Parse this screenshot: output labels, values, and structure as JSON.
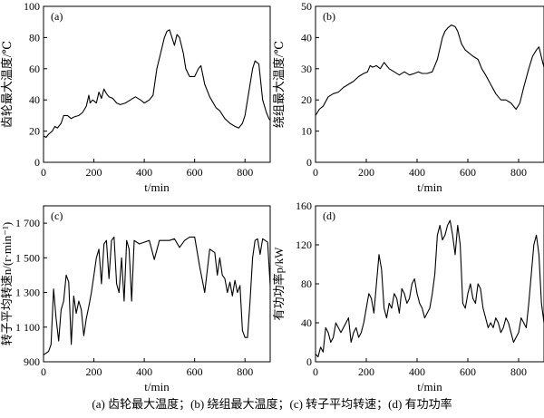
{
  "caption": "(a) 齿轮最大温度；(b) 绕组最大温度；(c) 转子平均转速；(d) 有功功率",
  "chart_data": [
    {
      "type": "line",
      "panel_label": "(a)",
      "ylabel": "齿轮最大温度/℃",
      "xlabel": "t/min",
      "xlim": [
        0,
        900
      ],
      "ylim": [
        0,
        100
      ],
      "xticks": [
        0,
        200,
        400,
        600,
        800
      ],
      "yticks": [
        0,
        20,
        40,
        60,
        80,
        100
      ],
      "ytick_labels": [
        "0",
        "20",
        "40",
        "60",
        "80",
        "100"
      ],
      "grid": false,
      "series": [
        {
          "x": [
            0,
            10,
            20,
            35,
            45,
            55,
            70,
            80,
            95,
            110,
            120,
            140,
            155,
            170,
            180,
            185,
            195,
            210,
            220,
            230,
            240,
            250,
            260,
            275,
            290,
            305,
            325,
            345,
            365,
            385,
            400,
            420,
            435,
            450,
            465,
            480,
            490,
            500,
            510,
            520,
            530,
            540,
            555,
            565,
            580,
            600,
            615,
            625,
            640,
            660,
            685,
            700,
            720,
            740,
            760,
            775,
            790,
            800,
            815,
            830,
            840,
            855,
            870,
            885,
            895,
            900
          ],
          "values": [
            17,
            16,
            18,
            20,
            23,
            22,
            25,
            30,
            30,
            28,
            29,
            30,
            32,
            36,
            43,
            38,
            40,
            38,
            45,
            41,
            47,
            44,
            42,
            41,
            38,
            37,
            38,
            40,
            42,
            40,
            38,
            40,
            43,
            60,
            70,
            80,
            84,
            85,
            80,
            75,
            82,
            80,
            70,
            60,
            55,
            55,
            60,
            62,
            50,
            42,
            35,
            33,
            28,
            25,
            23,
            22,
            25,
            30,
            45,
            60,
            65,
            63,
            40,
            32,
            28,
            27
          ]
        }
      ]
    },
    {
      "type": "line",
      "panel_label": "(b)",
      "ylabel": "绕组最大温度/℃",
      "xlabel": "t/min",
      "xlim": [
        0,
        900
      ],
      "ylim": [
        0,
        50
      ],
      "xticks": [
        0,
        200,
        400,
        600,
        800
      ],
      "yticks": [
        0,
        10,
        20,
        30,
        40,
        50
      ],
      "ytick_labels": [
        "0",
        "10",
        "20",
        "30",
        "40",
        "50"
      ],
      "grid": false,
      "series": [
        {
          "x": [
            0,
            15,
            30,
            50,
            70,
            90,
            110,
            130,
            150,
            170,
            190,
            205,
            215,
            225,
            240,
            255,
            270,
            290,
            310,
            330,
            350,
            370,
            390,
            405,
            420,
            440,
            460,
            480,
            500,
            510,
            520,
            535,
            550,
            560,
            575,
            590,
            605,
            620,
            640,
            655,
            670,
            690,
            710,
            730,
            750,
            770,
            780,
            790,
            805,
            820,
            840,
            855,
            870,
            880,
            895,
            900
          ],
          "values": [
            15,
            17,
            18,
            21,
            22,
            22.5,
            24,
            25,
            26,
            27.5,
            28.5,
            29,
            31,
            30.5,
            31,
            30,
            32,
            30,
            29,
            28,
            29,
            28,
            28.5,
            29,
            28.5,
            28.5,
            29,
            33,
            40,
            42,
            43,
            44,
            43.5,
            42,
            38,
            36,
            35,
            34,
            33,
            30,
            28,
            25,
            22,
            20,
            20,
            19,
            18,
            17,
            19,
            24,
            30,
            34,
            36,
            37,
            32,
            30.5
          ]
        }
      ]
    },
    {
      "type": "line",
      "panel_label": "(c)",
      "ylabel": "转子平均转速n/(r·min⁻¹)",
      "xlabel": "t/min",
      "xlim": [
        0,
        900
      ],
      "ylim": [
        900,
        1800
      ],
      "xticks": [
        0,
        200,
        400,
        600,
        800
      ],
      "yticks": [
        900,
        1100,
        1300,
        1500,
        1700
      ],
      "ytick_labels": [
        "900",
        "1 100",
        "1 300",
        "1 500",
        "1 700"
      ],
      "grid": false,
      "series": [
        {
          "x": [
            0,
            10,
            20,
            30,
            40,
            50,
            60,
            70,
            80,
            90,
            100,
            110,
            120,
            130,
            140,
            150,
            160,
            170,
            180,
            190,
            200,
            210,
            220,
            230,
            240,
            250,
            260,
            270,
            280,
            290,
            300,
            310,
            320,
            330,
            340,
            350,
            360,
            380,
            400,
            420,
            440,
            460,
            480,
            500,
            520,
            540,
            560,
            580,
            600,
            620,
            640,
            660,
            680,
            690,
            700,
            710,
            720,
            730,
            740,
            750,
            760,
            770,
            780,
            790,
            800,
            810,
            820,
            830,
            840,
            850,
            860,
            870,
            880,
            890,
            900
          ],
          "values": [
            940,
            950,
            960,
            1000,
            1320,
            1150,
            1020,
            1200,
            1250,
            1400,
            1360,
            1000,
            1280,
            1180,
            1250,
            1200,
            1050,
            1150,
            1220,
            1300,
            1400,
            1500,
            1550,
            1350,
            1580,
            1600,
            1380,
            1600,
            1620,
            1350,
            1300,
            1500,
            1250,
            1600,
            1550,
            1250,
            1600,
            1580,
            1590,
            1600,
            1490,
            1600,
            1600,
            1600,
            1610,
            1560,
            1600,
            1620,
            1620,
            1450,
            1300,
            1550,
            1530,
            1400,
            1500,
            1400,
            1380,
            1300,
            1360,
            1280,
            1370,
            1300,
            1340,
            1080,
            1040,
            1040,
            1250,
            1500,
            1600,
            1610,
            1520,
            1610,
            1600,
            1590,
            1340
          ]
        }
      ]
    },
    {
      "type": "line",
      "panel_label": "(d)",
      "ylabel": "有功功率p/kW",
      "xlabel": "t/min",
      "xlim": [
        0,
        900
      ],
      "ylim": [
        0,
        160
      ],
      "xticks": [
        0,
        200,
        400,
        600,
        800
      ],
      "yticks": [
        0,
        40,
        80,
        120,
        160
      ],
      "ytick_labels": [
        "0",
        "40",
        "80",
        "120",
        "160"
      ],
      "grid": false,
      "series": [
        {
          "x": [
            0,
            10,
            20,
            30,
            40,
            50,
            60,
            70,
            80,
            90,
            100,
            110,
            120,
            130,
            140,
            150,
            160,
            170,
            180,
            190,
            200,
            210,
            220,
            230,
            240,
            250,
            260,
            270,
            280,
            290,
            300,
            310,
            320,
            330,
            340,
            350,
            360,
            370,
            380,
            390,
            400,
            410,
            420,
            430,
            440,
            450,
            460,
            470,
            480,
            490,
            500,
            510,
            520,
            530,
            540,
            550,
            560,
            570,
            580,
            590,
            600,
            610,
            620,
            630,
            640,
            650,
            660,
            670,
            680,
            690,
            700,
            710,
            720,
            730,
            740,
            750,
            760,
            770,
            780,
            790,
            800,
            810,
            820,
            830,
            840,
            850,
            860,
            870,
            880,
            890,
            900
          ],
          "values": [
            8,
            5,
            15,
            10,
            35,
            30,
            20,
            25,
            40,
            35,
            30,
            35,
            40,
            45,
            20,
            30,
            35,
            25,
            30,
            40,
            55,
            70,
            65,
            50,
            80,
            110,
            95,
            55,
            45,
            60,
            55,
            70,
            65,
            50,
            75,
            70,
            60,
            65,
            80,
            85,
            70,
            60,
            55,
            45,
            50,
            55,
            70,
            90,
            130,
            140,
            125,
            130,
            140,
            145,
            130,
            110,
            140,
            120,
            60,
            55,
            70,
            80,
            65,
            60,
            80,
            75,
            55,
            45,
            35,
            40,
            35,
            45,
            40,
            30,
            35,
            45,
            40,
            30,
            20,
            25,
            30,
            45,
            40,
            35,
            60,
            90,
            120,
            130,
            110,
            60,
            40
          ]
        }
      ]
    }
  ]
}
